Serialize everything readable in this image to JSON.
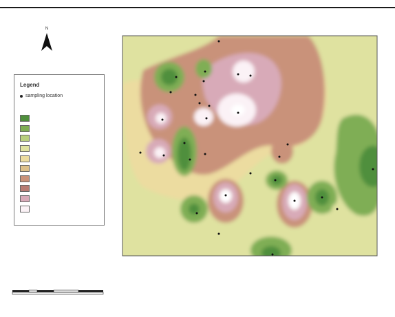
{
  "colors": {
    "rule": "#1a1a1a",
    "frame": "#555555",
    "class_colors": [
      "#4f8f3c",
      "#7fae55",
      "#b8cf7e",
      "#dfe2a0",
      "#ecdca0",
      "#dcc08a",
      "#c9927a",
      "#b87c74",
      "#d8aab8",
      "#fbf2f6"
    ]
  },
  "north_arrow": {
    "label": "N",
    "icon": "north-arrow-icon"
  },
  "legend": {
    "title": "Legend",
    "point_label": "sampling location",
    "point_icon": "dot-icon",
    "subtitle": "",
    "classes": [
      "",
      "",
      "",
      "",
      "",
      "",
      "",
      "",
      "",
      ""
    ]
  },
  "map": {
    "top_ticks": [
      "",
      "",
      "",
      "",
      "",
      ""
    ],
    "bottom_ticks": [
      "",
      "",
      "",
      "",
      "",
      ""
    ],
    "left_ticks": [
      "",
      "",
      "",
      "",
      ""
    ],
    "site_labels": []
  },
  "scale_bar": {
    "labels": [
      "",
      "",
      "",
      "",
      "",
      ""
    ],
    "unit": "",
    "ratio": ""
  }
}
